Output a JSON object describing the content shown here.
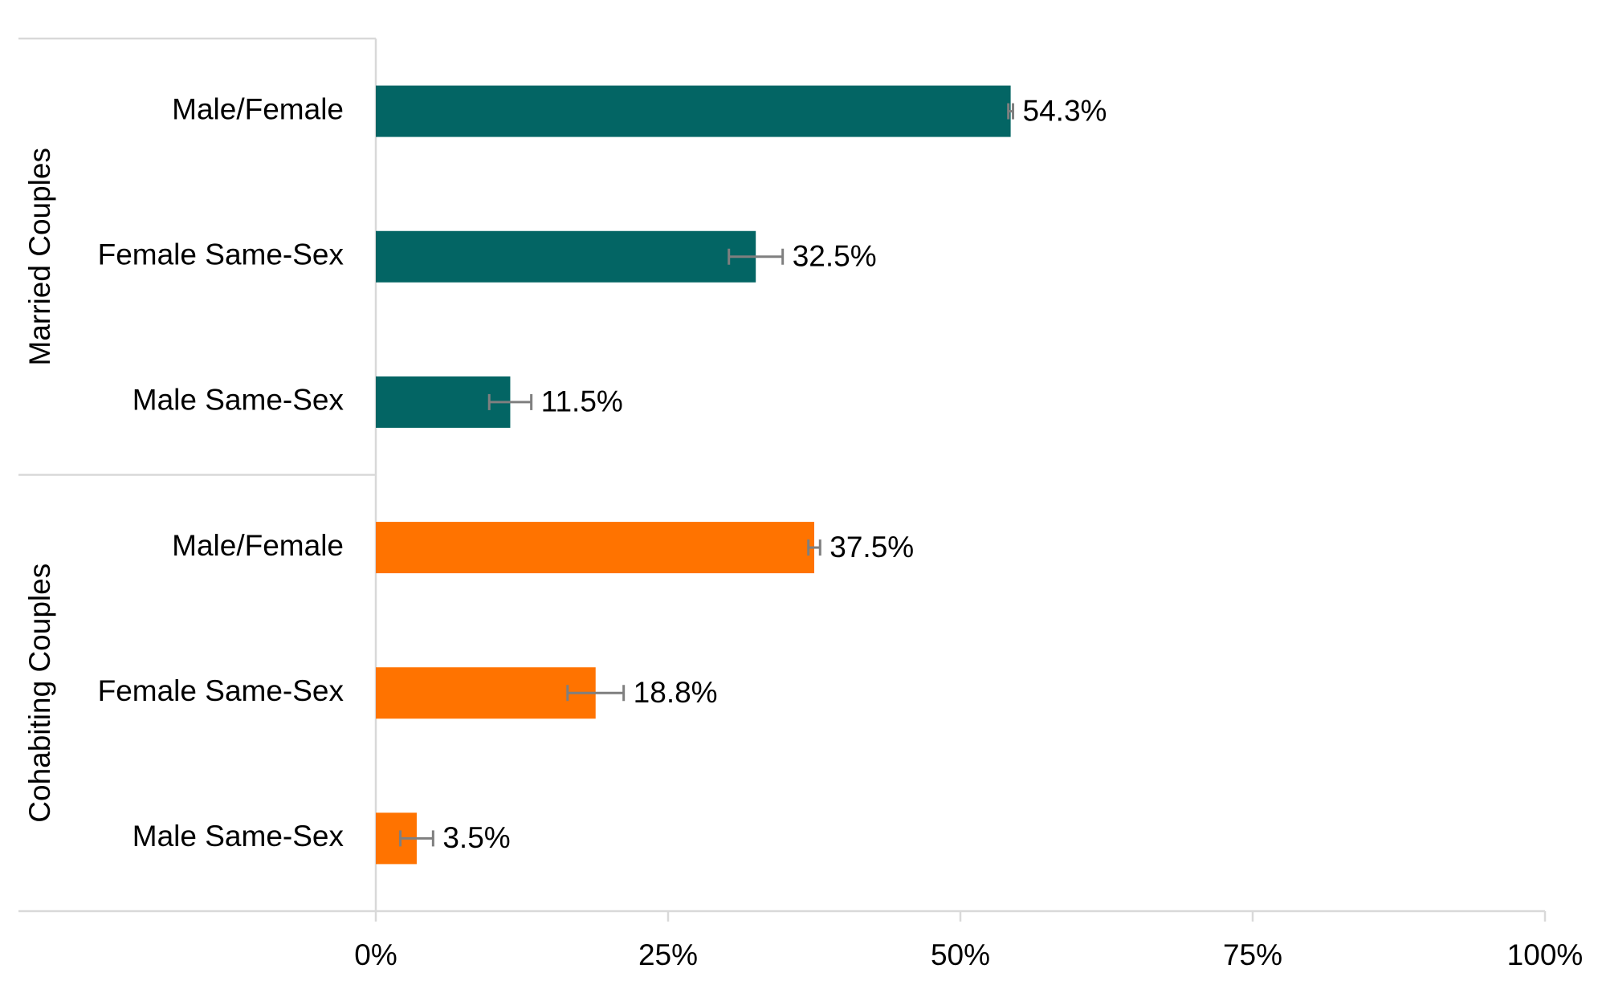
{
  "chart_data": {
    "type": "grouped-bar",
    "orientation": "horizontal",
    "groups": [
      {
        "name": "Married Couples",
        "color": "#036564",
        "categories": [
          "Male/Female",
          "Female Same-Sex",
          "Male Same-Sex"
        ],
        "values": [
          54.3,
          32.5,
          11.5
        ],
        "value_labels": [
          "54.3%",
          "32.5%",
          "11.5%"
        ],
        "errors": [
          0.2,
          2.3,
          1.8
        ]
      },
      {
        "name": "Cohabiting Couples",
        "color": "#ff7300",
        "categories": [
          "Male/Female",
          "Female Same-Sex",
          "Male Same-Sex"
        ],
        "values": [
          37.5,
          18.8,
          3.5
        ],
        "value_labels": [
          "37.5%",
          "18.8%",
          "3.5%"
        ],
        "errors": [
          0.5,
          2.4,
          1.4
        ]
      }
    ],
    "error_color": "#7f7f7f",
    "xlim": [
      0,
      100
    ],
    "xticks": [
      {
        "value": 0,
        "label": "0%"
      },
      {
        "value": 25,
        "label": "25%"
      },
      {
        "value": 50,
        "label": "50%"
      },
      {
        "value": 75,
        "label": "75%"
      },
      {
        "value": 100,
        "label": "100%"
      }
    ]
  }
}
